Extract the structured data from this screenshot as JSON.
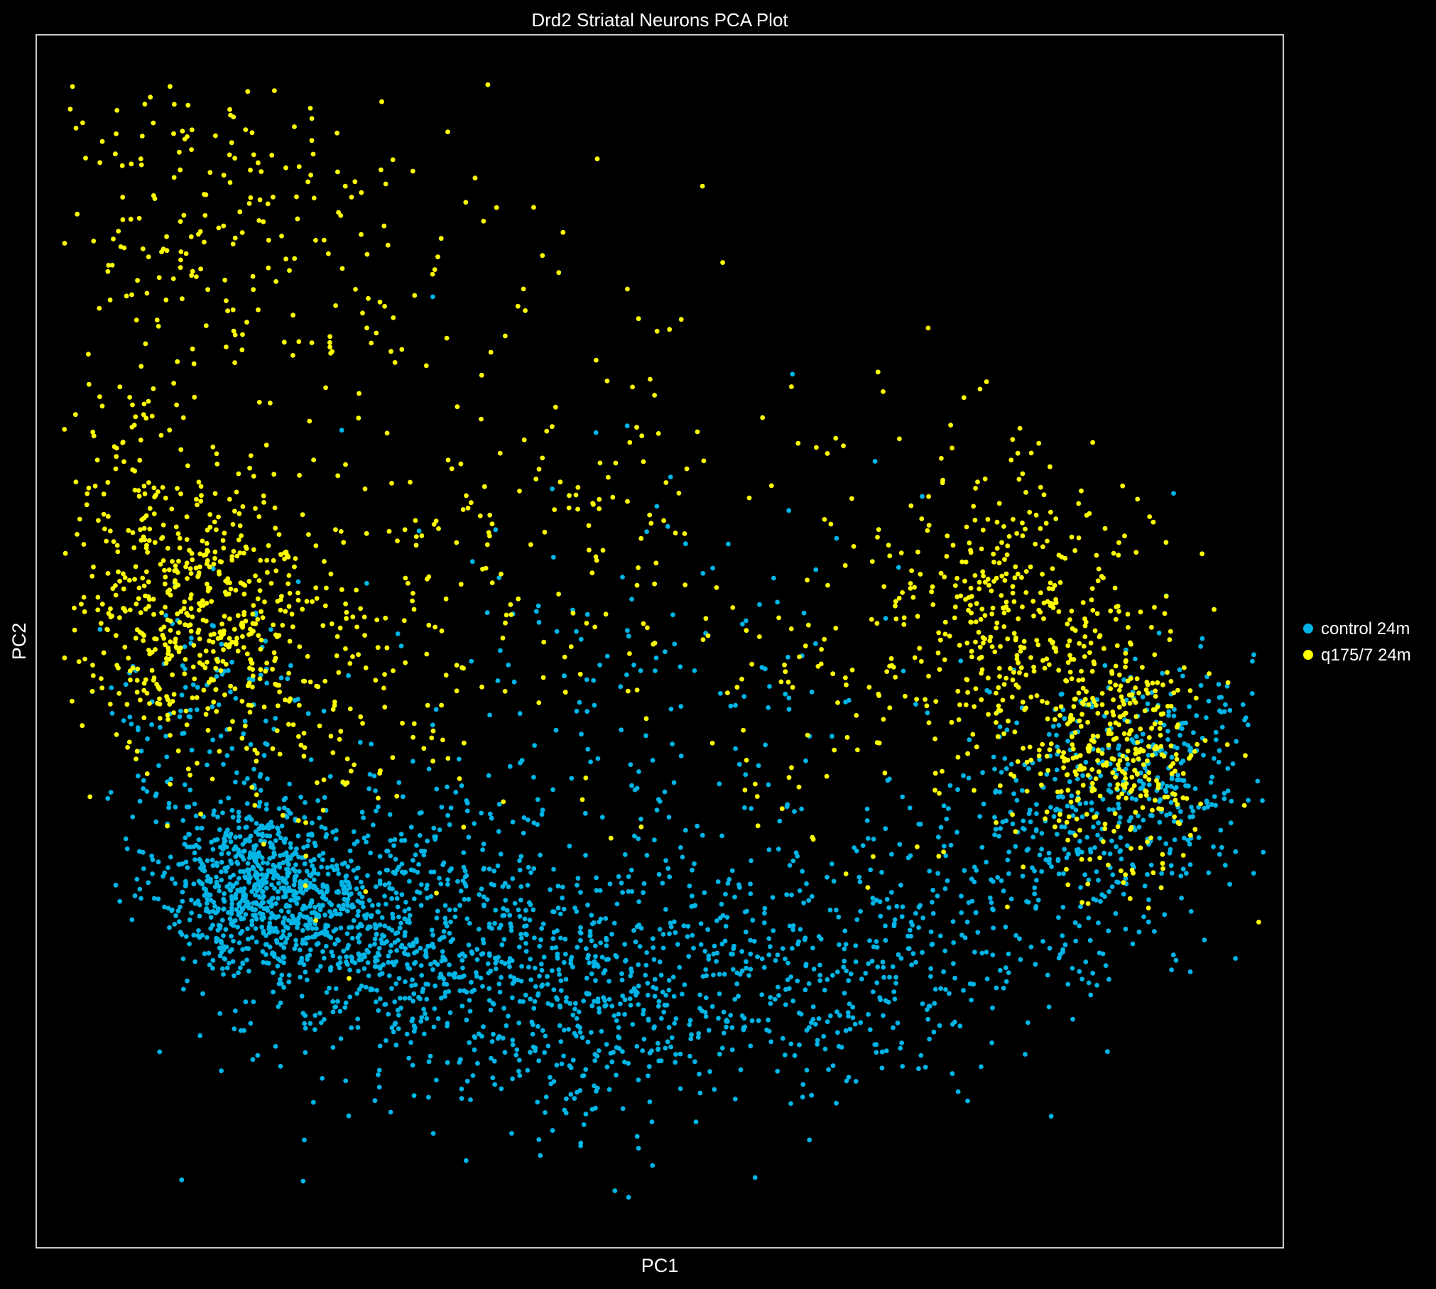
{
  "chart_data": {
    "type": "scatter",
    "title": "Drd2 Striatal Neurons PCA Plot",
    "xlabel": "PC1",
    "ylabel": "PC2",
    "xlim": [
      0,
      100
    ],
    "ylim": [
      0,
      100
    ],
    "grid": false,
    "axis_ticks": false,
    "legend_position": "right",
    "background": "#000000",
    "axes_color": "#ffffff",
    "series": [
      {
        "name": "control 24m",
        "color": "#00b4e6",
        "clusters": [
          {
            "center": [
              18,
              30
            ],
            "spread": [
              4,
              3.5
            ],
            "count": 750
          },
          {
            "center": [
              28,
              26
            ],
            "spread": [
              6,
              5
            ],
            "count": 600
          },
          {
            "center": [
              43,
              21
            ],
            "spread": [
              8,
              5.5
            ],
            "count": 500
          },
          {
            "center": [
              62,
              22
            ],
            "spread": [
              9,
              5
            ],
            "count": 350
          },
          {
            "center": [
              82,
              33
            ],
            "spread": [
              6,
              6
            ],
            "count": 330
          },
          {
            "center": [
              90,
              40
            ],
            "spread": [
              4,
              5
            ],
            "count": 250
          },
          {
            "center": [
              48,
              42
            ],
            "spread": [
              10,
              10
            ],
            "count": 220
          },
          {
            "center": [
              13,
              44
            ],
            "spread": [
              4,
              5
            ],
            "count": 120
          }
        ],
        "points": [
          [
            21.4,
            5.5
          ],
          [
            46.4,
            4.7
          ],
          [
            21.5,
            8.9
          ],
          [
            48.3,
            8.2
          ],
          [
            62,
            8.9
          ],
          [
            7.3,
            32.9
          ],
          [
            60.7,
            31.9
          ],
          [
            97,
            43.7
          ],
          [
            95.5,
            46.3
          ],
          [
            91.2,
            62.2
          ],
          [
            11.1,
            54.8
          ],
          [
            30.7,
            59.1
          ],
          [
            31.8,
            78.4
          ],
          [
            24.5,
            67.4
          ]
        ]
      },
      {
        "name": "q175/7 24m",
        "color": "#ffff00",
        "clusters": [
          {
            "center": [
              13,
              53
            ],
            "spread": [
              5,
              5
            ],
            "count": 480
          },
          {
            "center": [
              8,
              65
            ],
            "spread": [
              4,
              4.5
            ],
            "count": 70
          },
          {
            "center": [
              16,
              85
            ],
            "spread": [
              9,
              6.5
            ],
            "count": 220
          },
          {
            "center": [
              40,
              60
            ],
            "spread": [
              12,
              10
            ],
            "count": 190
          },
          {
            "center": [
              22,
              46
            ],
            "spread": [
              8,
              7
            ],
            "count": 150
          },
          {
            "center": [
              79,
              52
            ],
            "spread": [
              5,
              6
            ],
            "count": 330
          },
          {
            "center": [
              87,
              40
            ],
            "spread": [
              3.5,
              5
            ],
            "count": 320
          },
          {
            "center": [
              70,
              49
            ],
            "spread": [
              9,
              9
            ],
            "count": 150
          }
        ],
        "points": [
          [
            4.6,
            83
          ],
          [
            5.8,
            81
          ],
          [
            19.1,
            95.4
          ],
          [
            22.1,
            93.1
          ],
          [
            28.6,
            89.7
          ],
          [
            33,
            92
          ],
          [
            41.9,
            80.4
          ],
          [
            48.3,
            76.6
          ],
          [
            67.5,
            72.2
          ],
          [
            71,
            60.1
          ],
          [
            76.2,
            71.4
          ],
          [
            83.8,
            62.4
          ]
        ]
      }
    ]
  }
}
